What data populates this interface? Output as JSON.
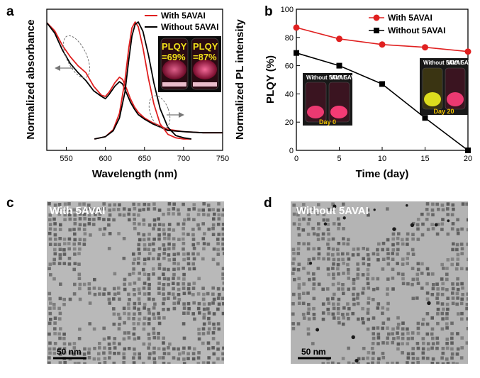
{
  "panels": {
    "a": "a",
    "b": "b",
    "c": "c",
    "d": "d"
  },
  "chart_data": [
    {
      "type": "line",
      "panel": "a",
      "xlabel": "Wavelength (nm)",
      "ylabel_left": "Normalized absorbance",
      "ylabel_right": "Normalized PL intensity",
      "xlim": [
        525,
        750
      ],
      "xticks": [
        550,
        600,
        650,
        700,
        750
      ],
      "legend": [
        "With 5AVAI",
        "Without 5AVAI"
      ],
      "legend_position": "top-right",
      "colors": {
        "with": "#e02020",
        "without": "#000000"
      },
      "series": [
        {
          "name": "With 5AVAI",
          "kind": "absorbance",
          "x": [
            525,
            535,
            545,
            555,
            565,
            575,
            585,
            595,
            600,
            605,
            612,
            618,
            622,
            627,
            632,
            637,
            642,
            650,
            660,
            670,
            680,
            700,
            725,
            750
          ],
          "y": [
            1.0,
            0.93,
            0.8,
            0.7,
            0.62,
            0.56,
            0.44,
            0.36,
            0.35,
            0.39,
            0.47,
            0.52,
            0.5,
            0.42,
            0.33,
            0.26,
            0.21,
            0.16,
            0.12,
            0.09,
            0.06,
            0.04,
            0.03,
            0.03
          ]
        },
        {
          "name": "Without 5AVAI",
          "kind": "absorbance",
          "x": [
            525,
            535,
            545,
            555,
            565,
            575,
            585,
            595,
            600,
            605,
            612,
            618,
            622,
            627,
            632,
            637,
            642,
            650,
            660,
            670,
            680,
            700,
            725,
            750
          ],
          "y": [
            1.0,
            0.91,
            0.76,
            0.64,
            0.56,
            0.49,
            0.4,
            0.35,
            0.33,
            0.37,
            0.44,
            0.48,
            0.46,
            0.38,
            0.3,
            0.24,
            0.19,
            0.15,
            0.11,
            0.08,
            0.05,
            0.04,
            0.03,
            0.03
          ]
        },
        {
          "name": "With 5AVAI",
          "kind": "PL",
          "x": [
            586,
            600,
            610,
            618,
            625,
            630,
            634,
            638,
            642,
            648,
            655,
            662,
            670,
            680,
            690,
            700,
            710
          ],
          "y": [
            0.0,
            0.02,
            0.08,
            0.22,
            0.5,
            0.78,
            0.95,
            1.0,
            0.96,
            0.78,
            0.52,
            0.3,
            0.13,
            0.04,
            0.01,
            0.0,
            0.0
          ]
        },
        {
          "name": "Without 5AVAI",
          "kind": "PL",
          "x": [
            586,
            600,
            610,
            618,
            625,
            630,
            634,
            638,
            642,
            648,
            655,
            662,
            670,
            680,
            690,
            700,
            710
          ],
          "y": [
            0.0,
            0.02,
            0.07,
            0.18,
            0.4,
            0.68,
            0.88,
            0.98,
            1.0,
            0.92,
            0.72,
            0.48,
            0.26,
            0.1,
            0.03,
            0.01,
            0.0
          ]
        }
      ],
      "inset": {
        "text": [
          "PLQY",
          "=69%",
          "PLQY",
          "=87%"
        ]
      }
    },
    {
      "type": "line",
      "panel": "b",
      "xlabel": "Time (day)",
      "ylabel": "PLQY (%)",
      "xlim": [
        0,
        20
      ],
      "ylim": [
        0,
        100
      ],
      "xticks": [
        0,
        5,
        10,
        15,
        20
      ],
      "yticks": [
        0,
        20,
        40,
        60,
        80,
        100
      ],
      "legend_position": "top-right",
      "series": [
        {
          "name": "With 5AVAI",
          "marker": "circle",
          "color": "#e02020",
          "x": [
            0,
            5,
            10,
            15,
            20
          ],
          "y": [
            87,
            79,
            75,
            73,
            70
          ]
        },
        {
          "name": "Without 5AVAI",
          "marker": "square",
          "color": "#000000",
          "x": [
            0,
            5,
            10,
            15,
            20
          ],
          "y": [
            69,
            60,
            47,
            23,
            0
          ]
        }
      ],
      "insets": [
        {
          "vial_labels": [
            "Without 5AVAI",
            "With 5AVAI"
          ],
          "day": "Day 0"
        },
        {
          "vial_labels": [
            "Without 5AVAI",
            "With 5AVAI"
          ],
          "day": "Day 20"
        }
      ]
    }
  ],
  "micrographs": [
    {
      "panel": "c",
      "label": "With 5AVAI",
      "scale": "50 nm",
      "density": 0.72
    },
    {
      "panel": "d",
      "label": "Without 5AVAI",
      "scale": "50 nm",
      "density": 0.62
    }
  ]
}
